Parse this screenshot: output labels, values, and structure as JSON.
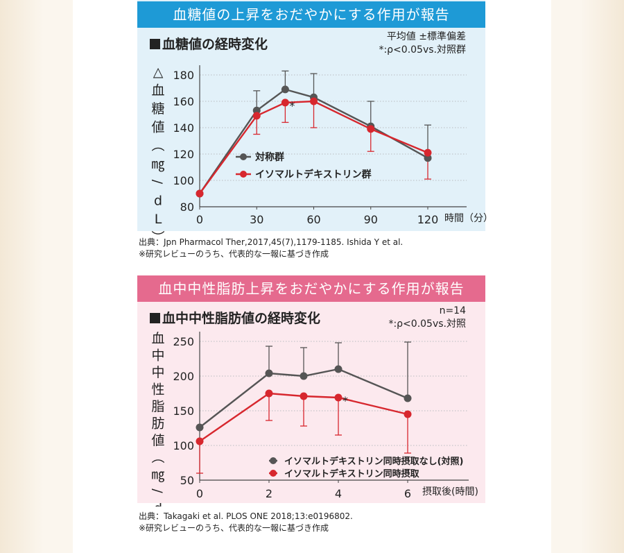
{
  "chart1": {
    "banner": "血糖値の上昇をおだやかにする作用が報告",
    "title": "血糖値の経時変化",
    "note1": "平均値 ±標準偏差",
    "note2": "*:ρ<0.05vs.対照群",
    "source": "出典：Jpn Pharmacol Ther,2017,45(7),1179-1185. Ishida Y et al.",
    "footnote": "※研究レビューのうち、代表的な一報に基づき作成"
  },
  "chart2": {
    "banner": "血中中性脂肪上昇をおだやかにする作用が報告",
    "title": "血中中性脂肪値の経時変化",
    "note1": "n=14",
    "note2": "*:ρ<0.05vs.対照",
    "source": "出典：Takagaki et al. PLOS ONE 2018;13:e0196802.",
    "footnote": "※研究レビューのうち、代表的な一報に基づき作成"
  },
  "colors": {
    "blue": "#1e9ad6",
    "blue_bg": "#e2f1f9",
    "pink": "#e56a8e",
    "pink_bg": "#fce9ee",
    "gray": "#555555",
    "red": "#d7272e"
  },
  "chart_data": [
    {
      "type": "line",
      "ylabel": "△血糖値（㎎/dL）",
      "xlabel": "時間（分）",
      "x": [
        0,
        30,
        45,
        60,
        90,
        120
      ],
      "xticks": [
        0,
        30,
        60,
        90,
        120
      ],
      "yticks": [
        80,
        100,
        120,
        140,
        160,
        180
      ],
      "ylim": [
        80,
        180
      ],
      "xlim": [
        0,
        120
      ],
      "grid": true,
      "legend": "center-left",
      "series": [
        {
          "name": "対称群",
          "color": "gray",
          "values": [
            90,
            153,
            169,
            163,
            141,
            117
          ],
          "err_up": [
            0,
            15,
            14,
            18,
            19,
            25
          ],
          "err_down": [
            0,
            0,
            0,
            0,
            0,
            0
          ]
        },
        {
          "name": "イソマルトデキストリン群",
          "color": "red",
          "values": [
            90,
            149,
            159,
            160,
            139,
            121
          ],
          "err_up": [
            0,
            0,
            0,
            0,
            0,
            0
          ],
          "err_down": [
            0,
            14,
            15,
            20,
            17,
            20
          ]
        }
      ],
      "annotations": [
        {
          "text": "*",
          "x": 45,
          "y": 159
        }
      ]
    },
    {
      "type": "line",
      "ylabel": "血中中性脂肪値（㎎/dL）",
      "xlabel": "摂取後(時間)",
      "x": [
        0,
        2,
        3,
        4,
        6
      ],
      "xticks": [
        0,
        2,
        4,
        6
      ],
      "yticks": [
        50,
        100,
        150,
        200,
        250
      ],
      "ylim": [
        50,
        250
      ],
      "xlim": [
        0,
        6
      ],
      "grid": true,
      "legend": "bottom-right",
      "series": [
        {
          "name": "イソマルトデキストリン同時摂取なし(対照)",
          "color": "gray",
          "values": [
            126,
            204,
            200,
            210,
            168
          ],
          "err_up": [
            0,
            39,
            41,
            38,
            81
          ],
          "err_down": [
            0,
            0,
            0,
            0,
            0
          ]
        },
        {
          "name": "イソマルトデキストリン同時摂取",
          "color": "red",
          "values": [
            106,
            175,
            171,
            169,
            145
          ],
          "err_up": [
            0,
            0,
            0,
            0,
            0
          ],
          "err_down": [
            46,
            39,
            43,
            54,
            56
          ]
        }
      ],
      "annotations": [
        {
          "text": "*",
          "x": 4,
          "y": 169
        }
      ]
    }
  ]
}
